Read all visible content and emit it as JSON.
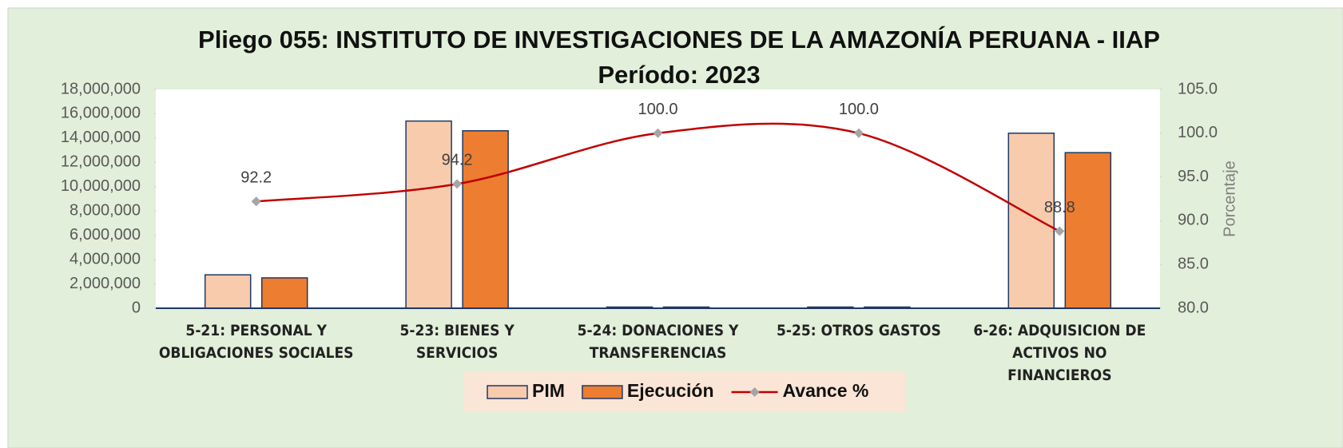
{
  "chart_data": {
    "type": "bar",
    "title": "Pliego 055: INSTITUTO DE INVESTIGACIONES DE LA AMAZONÍA PERUANA - IIAP",
    "subtitle": "Período: 2023",
    "categories": [
      "5-21: PERSONAL Y OBLIGACIONES SOCIALES",
      "5-23: BIENES Y SERVICIOS",
      "5-24: DONACIONES Y TRANSFERENCIAS",
      "5-25: OTROS GASTOS",
      "6-26: ADQUISICION DE ACTIVOS NO FINANCIEROS"
    ],
    "series": [
      {
        "name": "PIM",
        "color": "#f8cbad",
        "values": [
          2750000,
          15400000,
          100000,
          100000,
          14400000
        ]
      },
      {
        "name": "Ejecución",
        "color": "#ed7d31",
        "values": [
          2500000,
          14600000,
          100000,
          100000,
          12800000
        ]
      },
      {
        "name": "Avance %",
        "type": "line",
        "axis": "y2",
        "color": "#c00000",
        "marker_color": "#a5a5a5",
        "values": [
          92.2,
          94.2,
          100.0,
          100.0,
          88.8
        ],
        "value_labels": [
          "92.2",
          "94.2",
          "100.0",
          "100.0",
          "88.8"
        ]
      }
    ],
    "ylim": [
      0,
      18000000
    ],
    "yticks": [
      0,
      {
        "value": 2000000,
        "label": "2,000,000"
      },
      {
        "value": 4000000,
        "label": "4,000,000"
      },
      {
        "value": 6000000,
        "label": "6,000,000"
      },
      {
        "value": 8000000,
        "label": "8,000,000"
      },
      {
        "value": 10000000,
        "label": "10,000,000"
      },
      {
        "value": 12000000,
        "label": "12,000,000"
      },
      {
        "value": 14000000,
        "label": "14,000,000"
      },
      {
        "value": 16000000,
        "label": "16,000,000"
      },
      {
        "value": 18000000,
        "label": "18,000,000"
      }
    ],
    "y2lim": [
      80,
      105
    ],
    "y2ticks": [
      {
        "value": 80,
        "label": "80.0"
      },
      {
        "value": 85,
        "label": "85.0"
      },
      {
        "value": 90,
        "label": "90.0"
      },
      {
        "value": 95,
        "label": "95.0"
      },
      {
        "value": 100,
        "label": "100.0"
      },
      {
        "value": 105,
        "label": "105.0"
      }
    ],
    "y2label": "Porcentaje",
    "legend": "bottom"
  }
}
